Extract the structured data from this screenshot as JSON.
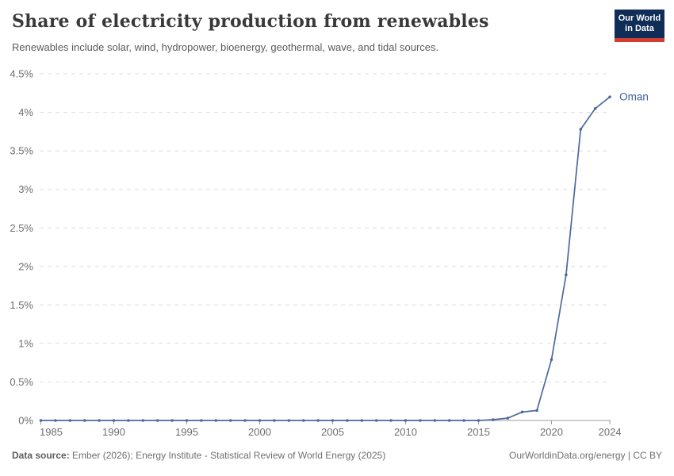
{
  "header": {
    "title": "Share of electricity production from renewables",
    "subtitle": "Renewables include solar, wind, hydropower, bioenergy, geothermal, wave, and tidal sources.",
    "logo": {
      "line1": "Our World",
      "line2": "in Data",
      "bg_color": "#0f2d56",
      "bar_color": "#cf3c30"
    }
  },
  "chart_data": {
    "type": "line",
    "title": "Share of electricity production from renewables",
    "xlabel": "",
    "ylabel": "",
    "xlim": [
      1985,
      2024
    ],
    "ylim": [
      0,
      4.5
    ],
    "grid": "horizontal-dashed",
    "legend_position": "end-of-line-label",
    "x": [
      1985,
      1986,
      1987,
      1988,
      1989,
      1990,
      1991,
      1992,
      1993,
      1994,
      1995,
      1996,
      1997,
      1998,
      1999,
      2000,
      2001,
      2002,
      2003,
      2004,
      2005,
      2006,
      2007,
      2008,
      2009,
      2010,
      2011,
      2012,
      2013,
      2014,
      2015,
      2016,
      2017,
      2018,
      2019,
      2020,
      2021,
      2022,
      2023,
      2024
    ],
    "series": [
      {
        "name": "Oman",
        "color": "#4c6a9c",
        "values": [
          0,
          0,
          0,
          0,
          0,
          0,
          0,
          0,
          0,
          0,
          0,
          0,
          0,
          0,
          0,
          0,
          0,
          0,
          0,
          0,
          0,
          0,
          0,
          0,
          0,
          0,
          0,
          0,
          0,
          0,
          0,
          0.01,
          0.03,
          0.11,
          0.13,
          0.79,
          1.89,
          3.78,
          4.05,
          4.2
        ]
      }
    ],
    "end_label": "Oman",
    "end_label_color": "#3d5e9c",
    "y_ticks": [
      {
        "value": 0,
        "label": "0%"
      },
      {
        "value": 0.5,
        "label": "0.5%"
      },
      {
        "value": 1,
        "label": "1%"
      },
      {
        "value": 1.5,
        "label": "1.5%"
      },
      {
        "value": 2,
        "label": "2%"
      },
      {
        "value": 2.5,
        "label": "2.5%"
      },
      {
        "value": 3,
        "label": "3%"
      },
      {
        "value": 3.5,
        "label": "3.5%"
      },
      {
        "value": 4,
        "label": "4%"
      },
      {
        "value": 4.5,
        "label": "4.5%"
      }
    ],
    "x_ticks": [
      1985,
      1990,
      1995,
      2000,
      2005,
      2010,
      2015,
      2020,
      2024
    ],
    "colors": {
      "grid": "#dcdcdc",
      "axis": "#9d9d9d",
      "tick_label": "#6e6e6e"
    }
  },
  "footer": {
    "source_label": "Data source:",
    "source_text": "Ember (2026); Energy Institute - Statistical Review of World Energy (2025)",
    "credit": "OurWorldinData.org/energy | CC BY"
  }
}
